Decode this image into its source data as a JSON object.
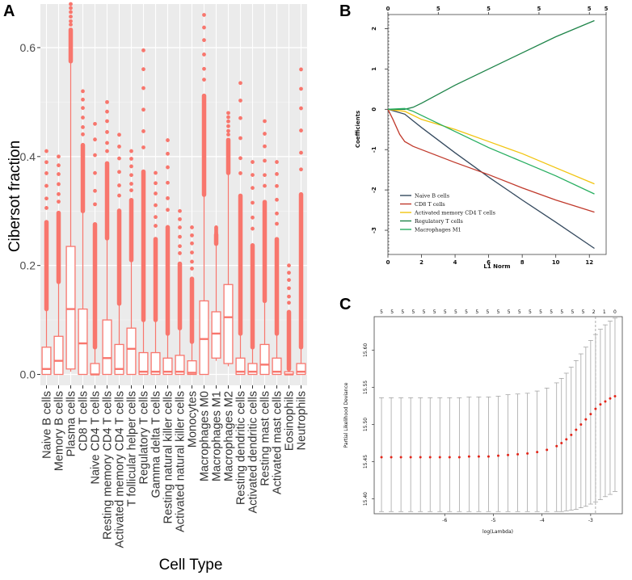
{
  "panels": {
    "a": "A",
    "b": "B",
    "c": "C"
  },
  "chart_data": [
    {
      "id": "A",
      "type": "box",
      "title": "",
      "xlabel": "Cell Type",
      "ylabel": "Cibersot fraction",
      "ylim": [
        -0.02,
        0.68
      ],
      "yticks": [
        0.0,
        0.2,
        0.4,
        0.6
      ],
      "ytick_labels": [
        "0.0",
        "0.2",
        "0.4",
        "0.6"
      ],
      "box_color": "#f8766d",
      "background": "#ebebeb",
      "categories": [
        "Naive B cells",
        "Memory B cells",
        "Plasma cells",
        "CD8 T cells",
        "Naive CD4 T cells",
        "Resting memory CD4 T cells",
        "Activated memory CD4 T cells",
        "T follicular helper cells",
        "Regulatory T cells",
        "Gamma delta T cells",
        "Resting natural killer cells",
        "Activated natural killer cells",
        "Monocytes",
        "Macrophages M0",
        "Macrophages M1",
        "Macrophages M2",
        "Resting dendritic cells",
        "Activated dendritic cells",
        "Resting mast cells",
        "Activated mast cells",
        "Eosinophils",
        "Neutrophils"
      ],
      "boxes": [
        {
          "q1": 0.0,
          "median": 0.01,
          "q3": 0.05,
          "whisker_hi": 0.12,
          "max": 0.41
        },
        {
          "q1": 0.0,
          "median": 0.025,
          "q3": 0.07,
          "whisker_hi": 0.17,
          "max": 0.4
        },
        {
          "q1": 0.01,
          "median": 0.12,
          "q3": 0.235,
          "whisker_hi": 0.575,
          "max": 0.68
        },
        {
          "q1": 0.0,
          "median": 0.057,
          "q3": 0.12,
          "whisker_hi": 0.3,
          "max": 0.52
        },
        {
          "q1": 0.0,
          "median": 0.0,
          "q3": 0.02,
          "whisker_hi": 0.05,
          "max": 0.46
        },
        {
          "q1": 0.0,
          "median": 0.03,
          "q3": 0.1,
          "whisker_hi": 0.25,
          "max": 0.5
        },
        {
          "q1": 0.0,
          "median": 0.01,
          "q3": 0.055,
          "whisker_hi": 0.13,
          "max": 0.44
        },
        {
          "q1": 0.0,
          "median": 0.047,
          "q3": 0.085,
          "whisker_hi": 0.21,
          "max": 0.41
        },
        {
          "q1": 0.0,
          "median": 0.005,
          "q3": 0.04,
          "whisker_hi": 0.1,
          "max": 0.595
        },
        {
          "q1": 0.0,
          "median": 0.005,
          "q3": 0.04,
          "whisker_hi": 0.1,
          "max": 0.37
        },
        {
          "q1": 0.0,
          "median": 0.005,
          "q3": 0.03,
          "whisker_hi": 0.075,
          "max": 0.43
        },
        {
          "q1": 0.0,
          "median": 0.005,
          "q3": 0.035,
          "whisker_hi": 0.085,
          "max": 0.3
        },
        {
          "q1": 0.0,
          "median": 0.003,
          "q3": 0.025,
          "whisker_hi": 0.06,
          "max": 0.27
        },
        {
          "q1": 0.0,
          "median": 0.065,
          "q3": 0.135,
          "whisker_hi": 0.33,
          "max": 0.66
        },
        {
          "q1": 0.03,
          "median": 0.075,
          "q3": 0.115,
          "whisker_hi": 0.24,
          "max": 0.27
        },
        {
          "q1": 0.02,
          "median": 0.105,
          "q3": 0.165,
          "whisker_hi": 0.37,
          "max": 0.48
        },
        {
          "q1": 0.0,
          "median": 0.005,
          "q3": 0.03,
          "whisker_hi": 0.075,
          "max": 0.535
        },
        {
          "q1": 0.0,
          "median": 0.005,
          "q3": 0.02,
          "whisker_hi": 0.05,
          "max": 0.39
        },
        {
          "q1": 0.0,
          "median": 0.018,
          "q3": 0.055,
          "whisker_hi": 0.135,
          "max": 0.465
        },
        {
          "q1": 0.0,
          "median": 0.005,
          "q3": 0.03,
          "whisker_hi": 0.075,
          "max": 0.39
        },
        {
          "q1": 0.0,
          "median": 0.0,
          "q3": 0.005,
          "whisker_hi": 0.01,
          "max": 0.2
        },
        {
          "q1": 0.0,
          "median": 0.005,
          "q3": 0.02,
          "whisker_hi": 0.05,
          "max": 0.56
        }
      ]
    },
    {
      "id": "B",
      "type": "line",
      "xlabel": "L1 Norm",
      "ylabel": "Coefficients",
      "xlim": [
        0,
        13
      ],
      "ylim": [
        -3.6,
        2.35
      ],
      "xticks": [
        0,
        2,
        4,
        6,
        8,
        10,
        12
      ],
      "yticks": [
        -3,
        -2,
        -1,
        0,
        1,
        2
      ],
      "top_axis_ticks": [
        0,
        3,
        6,
        9,
        12,
        13
      ],
      "top_axis_labels": [
        "0",
        "5",
        "5",
        "5",
        "5",
        "5"
      ],
      "vline_x": 0,
      "series": [
        {
          "name": "Naive B cells",
          "color": "#34495e",
          "x": [
            0,
            1,
            2,
            4,
            6,
            8,
            10,
            12.3
          ],
          "y": [
            0,
            -0.12,
            -0.45,
            -1.08,
            -1.68,
            -2.25,
            -2.8,
            -3.45
          ]
        },
        {
          "name": "CD8 T cells",
          "color": "#c0392b",
          "x": [
            0,
            0.3,
            0.7,
            1,
            1.5,
            2,
            4,
            6,
            8,
            10,
            12.3
          ],
          "y": [
            0,
            -0.25,
            -0.62,
            -0.8,
            -0.92,
            -1.0,
            -1.32,
            -1.62,
            -1.95,
            -2.25,
            -2.55
          ]
        },
        {
          "name": "Activated memory CD4 T cells",
          "color": "#f1c40f",
          "x": [
            0,
            1,
            2,
            4,
            6,
            8,
            10,
            12.3
          ],
          "y": [
            0,
            -0.05,
            -0.25,
            -0.5,
            -0.8,
            -1.1,
            -1.45,
            -1.85
          ]
        },
        {
          "name": "Regulatory T cells",
          "color": "#1e8449",
          "x": [
            0,
            1,
            1.5,
            2,
            4,
            6,
            8,
            10,
            12.3
          ],
          "y": [
            0,
            0,
            0.05,
            0.15,
            0.6,
            1.0,
            1.4,
            1.8,
            2.2
          ]
        },
        {
          "name": "Macrophages M1",
          "color": "#27ae60",
          "x": [
            0,
            1,
            1.5,
            2,
            4,
            6,
            8,
            10,
            12.3
          ],
          "y": [
            0,
            0.02,
            -0.05,
            -0.15,
            -0.55,
            -0.95,
            -1.3,
            -1.65,
            -2.1
          ]
        }
      ]
    },
    {
      "id": "C",
      "type": "errorbar",
      "xlabel": "log(Lambda)",
      "ylabel": "Partial Likelihood Deviance",
      "xlim": [
        -7.45,
        -2.35
      ],
      "ylim": [
        15.38,
        15.645
      ],
      "xticks": [
        -6,
        -5,
        -4,
        -3
      ],
      "yticks": [
        15.4,
        15.45,
        15.5,
        15.55,
        15.6
      ],
      "ytick_labels": [
        "15.40",
        "15.45",
        "15.50",
        "15.55",
        "15.60"
      ],
      "dashed_vline_x": -2.9,
      "top_axis_labels": [
        "5",
        "5",
        "5",
        "5",
        "5",
        "5",
        "5",
        "5",
        "5",
        "5",
        "5",
        "5",
        "5",
        "5",
        "5",
        "5",
        "5",
        "5",
        "5",
        "5",
        "2",
        "1",
        "0"
      ],
      "x": [
        -7.3,
        -7.1,
        -6.9,
        -6.7,
        -6.5,
        -6.3,
        -6.1,
        -5.9,
        -5.7,
        -5.5,
        -5.3,
        -5.1,
        -4.9,
        -4.7,
        -4.5,
        -4.3,
        -4.1,
        -3.9,
        -3.7,
        -3.6,
        -3.5,
        -3.4,
        -3.3,
        -3.2,
        -3.1,
        -3.0,
        -2.9,
        -2.8,
        -2.7,
        -2.6,
        -2.5
      ],
      "mean": [
        15.456,
        15.456,
        15.456,
        15.456,
        15.456,
        15.456,
        15.456,
        15.456,
        15.456,
        15.457,
        15.457,
        15.457,
        15.458,
        15.459,
        15.46,
        15.461,
        15.463,
        15.466,
        15.471,
        15.475,
        15.48,
        15.486,
        15.493,
        15.5,
        15.507,
        15.514,
        15.521,
        15.527,
        15.531,
        15.535,
        15.538
      ],
      "lower": [
        15.383,
        15.383,
        15.383,
        15.383,
        15.383,
        15.383,
        15.383,
        15.383,
        15.383,
        15.383,
        15.383,
        15.383,
        15.383,
        15.383,
        15.383,
        15.383,
        15.383,
        15.383,
        15.383,
        15.383,
        15.384,
        15.385,
        15.386,
        15.388,
        15.39,
        15.393,
        15.396,
        15.399,
        15.403,
        15.406,
        15.41
      ],
      "upper": [
        15.536,
        15.536,
        15.536,
        15.536,
        15.536,
        15.536,
        15.536,
        15.536,
        15.536,
        15.537,
        15.537,
        15.537,
        15.538,
        15.54,
        15.541,
        15.542,
        15.545,
        15.549,
        15.556,
        15.562,
        15.569,
        15.577,
        15.586,
        15.595,
        15.604,
        15.613,
        15.621,
        15.628,
        15.634,
        15.639,
        15.643
      ]
    }
  ]
}
